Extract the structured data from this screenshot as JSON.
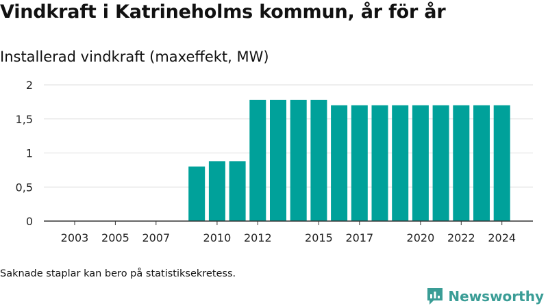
{
  "header": {
    "title": "Vindkraft i Katrineholms kommun, år för år",
    "subtitle": "Installerad vindkraft (maxeffekt, MW)"
  },
  "footer": {
    "note": "Saknade staplar kan bero på statistiksekretess.",
    "brand": "Newsworthy"
  },
  "colors": {
    "bar": "#00a19a",
    "brand": "#3a9d96",
    "grid": "#dddddd",
    "axis": "#333333"
  },
  "chart_data": {
    "type": "bar",
    "title": "Vindkraft i Katrineholms kommun, år för år",
    "ylabel": "Installerad vindkraft (maxeffekt, MW)",
    "xlabel": "",
    "ylim": [
      0,
      2
    ],
    "yticks": [
      0,
      0.5,
      1,
      1.5,
      2
    ],
    "ytick_labels": [
      "0",
      "0,5",
      "1",
      "1,5",
      "2"
    ],
    "grid": true,
    "categories": [
      2003,
      2004,
      2005,
      2006,
      2007,
      2008,
      2009,
      2010,
      2011,
      2012,
      2013,
      2014,
      2015,
      2016,
      2017,
      2018,
      2019,
      2020,
      2021,
      2022,
      2023,
      2024
    ],
    "values": [
      null,
      null,
      null,
      null,
      null,
      null,
      0.8,
      0.88,
      0.88,
      1.78,
      1.78,
      1.78,
      1.78,
      1.7,
      1.7,
      1.7,
      1.7,
      1.7,
      1.7,
      1.7,
      1.7,
      1.7
    ],
    "xtick_labels": [
      "2003",
      "2005",
      "2007",
      "2010",
      "2012",
      "2015",
      "2017",
      "2020",
      "2022",
      "2024"
    ]
  }
}
